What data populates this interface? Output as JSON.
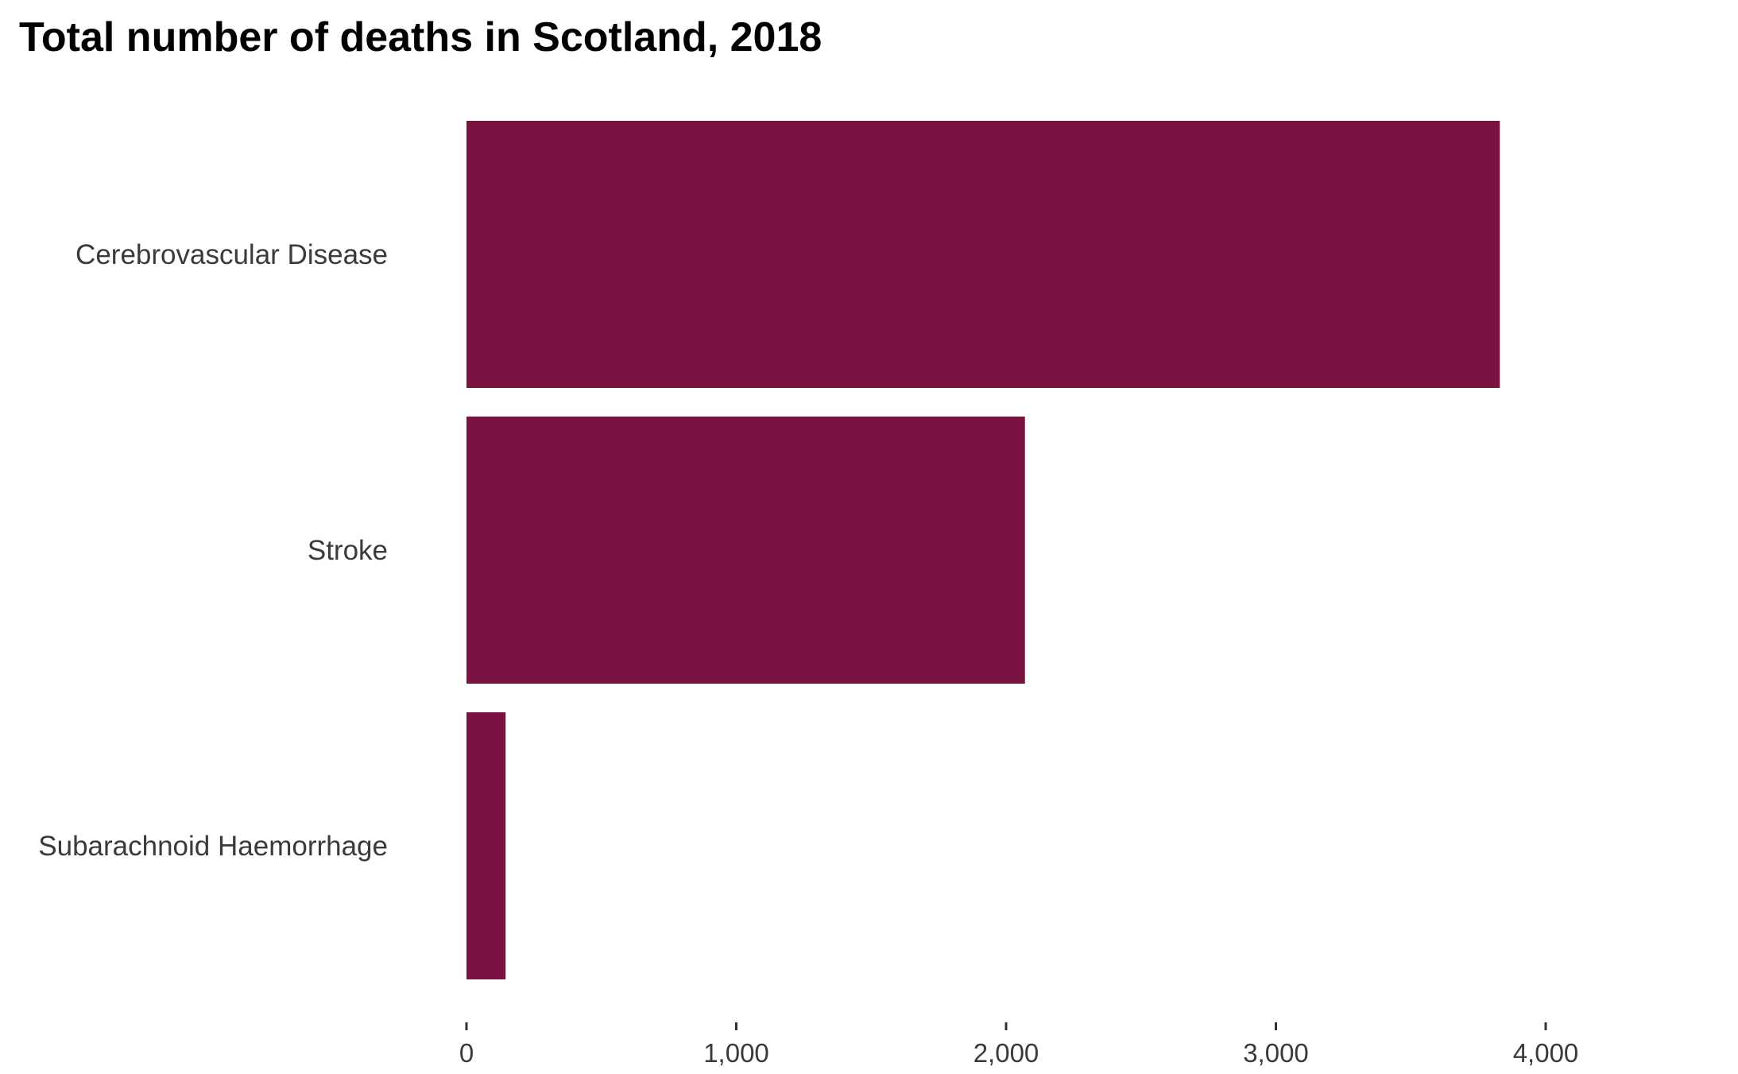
{
  "chart_data": {
    "type": "bar",
    "orientation": "horizontal",
    "title": "Total number of deaths in Scotland, 2018",
    "xlabel": "",
    "ylabel": "",
    "categories": [
      "Cerebrovascular Disease",
      "Stroke",
      "Subarachnoid Haemorrhage"
    ],
    "values": [
      3830,
      2070,
      145
    ],
    "xlim": [
      0,
      4000
    ],
    "xticks": [
      0,
      1000,
      2000,
      3000,
      4000
    ],
    "xtick_labels": [
      "0",
      "1,000",
      "2,000",
      "3,000",
      "4,000"
    ],
    "grid": false,
    "legend": "none",
    "bar_color": "#7a1242"
  }
}
